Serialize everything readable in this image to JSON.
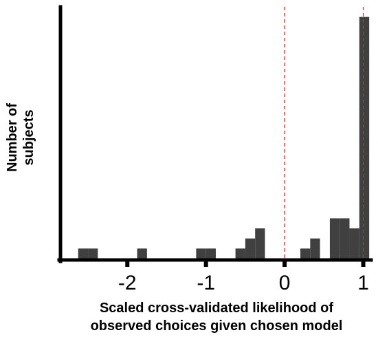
{
  "chart_data": {
    "type": "bar",
    "title": "",
    "xlabel_lines": [
      "Scaled cross-validated likelihood of",
      "observed choices given chosen model"
    ],
    "ylabel_lines": [
      "Number of",
      "subjects"
    ],
    "xlim": [
      -2.85,
      1.1
    ],
    "ylim": [
      0,
      25
    ],
    "x_ticks": [
      -2,
      -1,
      0,
      1
    ],
    "x_tick_labels": [
      "-2",
      "-1",
      "0",
      "1"
    ],
    "y_ticks_shown": false,
    "bin_width": 0.125,
    "bins": [
      {
        "x0": -2.625,
        "x1": -2.5,
        "count": 1
      },
      {
        "x0": -2.5,
        "x1": -2.375,
        "count": 1
      },
      {
        "x0": -1.875,
        "x1": -1.75,
        "count": 1
      },
      {
        "x0": -1.125,
        "x1": -1.0,
        "count": 1
      },
      {
        "x0": -1.0,
        "x1": -0.875,
        "count": 1
      },
      {
        "x0": -0.625,
        "x1": -0.5,
        "count": 1
      },
      {
        "x0": -0.5,
        "x1": -0.375,
        "count": 2
      },
      {
        "x0": -0.375,
        "x1": -0.25,
        "count": 3
      },
      {
        "x0": 0.2,
        "x1": 0.325,
        "count": 1
      },
      {
        "x0": 0.325,
        "x1": 0.45,
        "count": 2
      },
      {
        "x0": 0.575,
        "x1": 0.7,
        "count": 4
      },
      {
        "x0": 0.7,
        "x1": 0.825,
        "count": 4
      },
      {
        "x0": 0.825,
        "x1": 0.95,
        "count": 3
      },
      {
        "x0": 0.95,
        "x1": 1.075,
        "count": 24
      }
    ],
    "reference_lines": [
      0,
      1
    ],
    "colors": {
      "bar": "#404040",
      "axis": "#000000",
      "reference_line": "#e0262b"
    }
  }
}
